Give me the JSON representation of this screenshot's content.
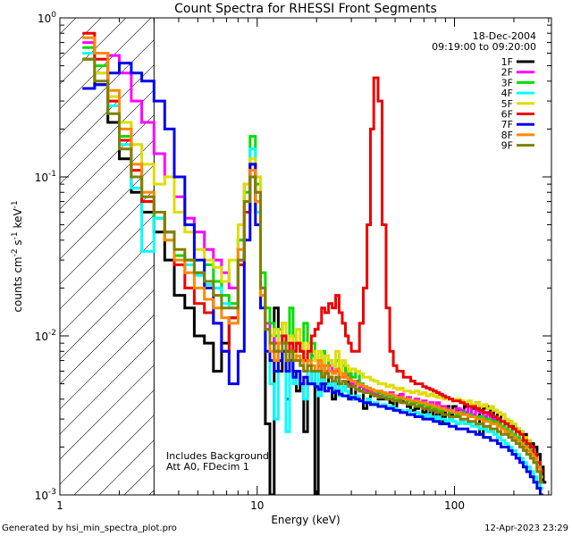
{
  "chart_data": {
    "type": "line",
    "title": "Count Spectra for RHESSI Front Segments",
    "xlabel": "Energy (keV)",
    "ylabel_main": "counts cm",
    "ylabel_sup1": "-2",
    "ylabel_mid1": " s",
    "ylabel_sup2": "-1",
    "ylabel_mid2": " keV",
    "ylabel_sup3": "-1",
    "xscale": "log",
    "yscale": "log",
    "xlim": [
      1,
      310
    ],
    "ylim": [
      0.001,
      1.0
    ],
    "x_ticks": [
      {
        "v": 1,
        "label": "1"
      },
      {
        "v": 10,
        "label": "10"
      },
      {
        "v": 100,
        "label": "100"
      }
    ],
    "y_ticks": [
      {
        "v": 1,
        "base": "10",
        "exp": "0"
      },
      {
        "v": 0.1,
        "base": "10",
        "exp": "-1"
      },
      {
        "v": 0.01,
        "base": "10",
        "exp": "-2"
      },
      {
        "v": 0.001,
        "base": "10",
        "exp": "-3"
      }
    ],
    "date": "18-Dec-2004",
    "time_range": "09:19:00 to 09:20:00",
    "notes": [
      "Includes Background",
      "Att A0, FDecim 1"
    ],
    "hatched_below_keV": 3,
    "bin_edges": [
      1.3,
      1.5,
      1.75,
      2,
      2.3,
      2.6,
      3,
      3.4,
      3.8,
      4.3,
      4.8,
      5.4,
      6,
      6.6,
      7.2,
      8,
      8.6,
      9.2,
      9.8,
      10.4,
      11,
      11.6,
      12.2,
      12.8,
      13.4,
      14,
      14.6,
      15.2,
      15.8,
      16.5,
      17.2,
      18,
      18.8,
      19.6,
      20.4,
      21.2,
      22,
      23,
      24,
      25,
      26,
      27,
      28,
      29,
      30,
      31.5,
      33,
      34.5,
      36,
      37.5,
      39,
      41,
      43,
      45,
      47,
      49,
      51,
      53,
      55,
      57.5,
      60,
      63,
      66,
      69,
      72,
      75,
      78,
      81,
      84,
      87,
      90,
      94,
      98,
      102,
      107,
      112,
      117,
      122,
      128,
      134,
      140,
      146,
      152,
      158,
      165,
      172,
      180,
      188,
      196,
      205,
      214,
      223,
      232,
      242,
      252,
      262,
      272,
      282,
      292,
      303
    ],
    "series": [
      {
        "name": "1F",
        "color": "#000000",
        "values": [
          0.55,
          0.38,
          0.22,
          0.13,
          0.08,
          0.06,
          0.045,
          0.03,
          0.018,
          0.015,
          0.01,
          0.009,
          0.006,
          0.009,
          0.013,
          0.03,
          0.06,
          0.1,
          0.06,
          0.02,
          0.0028,
          0.001,
          0.015,
          0.006,
          0.008,
          0.004,
          0.009,
          0.006,
          0.0045,
          0.005,
          0.0025,
          0.005,
          0.006,
          0.001,
          0.005,
          0.006,
          0.005,
          0.0055,
          0.004,
          0.005,
          0.006,
          0.0065,
          0.0055,
          0.005,
          0.004,
          0.005,
          0.0045,
          0.0035,
          0.004,
          0.0045,
          0.0042,
          0.004,
          0.004,
          0.004,
          0.0038,
          0.0035,
          0.0042,
          0.004,
          0.0038,
          0.0036,
          0.0034,
          0.0035,
          0.0038,
          0.0033,
          0.0036,
          0.003,
          0.0034,
          0.0031,
          0.0036,
          0.0028,
          0.0036,
          0.0032,
          0.0036,
          0.0034,
          0.0033,
          0.0036,
          0.0032,
          0.0035,
          0.0038,
          0.0024,
          0.0035,
          0.0036,
          0.0031,
          0.0034,
          0.003,
          0.0032,
          0.0028,
          0.0029,
          0.0027,
          0.0026,
          0.0025,
          0.0024,
          0.0022,
          0.0021,
          0.002,
          0.0018,
          0.0015,
          0.0012
        ]
      },
      {
        "name": "2F",
        "color": "#ff00ff",
        "values": [
          0.7,
          0.6,
          0.58,
          0.45,
          0.3,
          0.22,
          0.14,
          0.1,
          0.075,
          0.055,
          0.045,
          0.035,
          0.03,
          0.025,
          0.02,
          0.04,
          0.09,
          0.12,
          0.08,
          0.02,
          0.012,
          0.01,
          0.009,
          0.01,
          0.012,
          0.008,
          0.009,
          0.01,
          0.009,
          0.008,
          0.007,
          0.008,
          0.0075,
          0.007,
          0.0065,
          0.0065,
          0.006,
          0.0065,
          0.006,
          0.006,
          0.0055,
          0.0055,
          0.006,
          0.0055,
          0.005,
          0.0052,
          0.0048,
          0.0046,
          0.0045,
          0.0044,
          0.0043,
          0.0042,
          0.0043,
          0.0042,
          0.0044,
          0.0042,
          0.0041,
          0.0043,
          0.004,
          0.0041,
          0.0038,
          0.004,
          0.0037,
          0.0039,
          0.0036,
          0.0038,
          0.0036,
          0.0038,
          0.0035,
          0.0036,
          0.0035,
          0.0034,
          0.0033,
          0.0035,
          0.0034,
          0.0033,
          0.0036,
          0.0032,
          0.0034,
          0.0033,
          0.0031,
          0.0032,
          0.003,
          0.003,
          0.0029,
          0.0027,
          0.0026,
          0.0025,
          0.0024,
          0.0022,
          0.0021,
          0.002,
          0.0019,
          0.0018,
          0.0016,
          0.0014,
          0.0012
        ]
      },
      {
        "name": "3F",
        "color": "#00dd00",
        "values": [
          0.65,
          0.5,
          0.3,
          0.18,
          0.1,
          0.07,
          0.055,
          0.04,
          0.032,
          0.03,
          0.025,
          0.028,
          0.022,
          0.018,
          0.016,
          0.04,
          0.08,
          0.18,
          0.09,
          0.025,
          0.015,
          0.012,
          0.01,
          0.011,
          0.012,
          0.009,
          0.015,
          0.01,
          0.009,
          0.008,
          0.012,
          0.007,
          0.009,
          0.007,
          0.006,
          0.008,
          0.0065,
          0.007,
          0.0065,
          0.007,
          0.006,
          0.0065,
          0.006,
          0.0058,
          0.0055,
          0.006,
          0.005,
          0.0048,
          0.0047,
          0.0046,
          0.0045,
          0.0044,
          0.0043,
          0.0042,
          0.0042,
          0.0041,
          0.004,
          0.0041,
          0.004,
          0.0039,
          0.0038,
          0.0038,
          0.0037,
          0.0037,
          0.0036,
          0.0036,
          0.0035,
          0.0035,
          0.0034,
          0.0034,
          0.0034,
          0.0033,
          0.0033,
          0.0032,
          0.0033,
          0.0032,
          0.0032,
          0.0031,
          0.0031,
          0.0031,
          0.003,
          0.003,
          0.0029,
          0.0029,
          0.0028,
          0.0027,
          0.0026,
          0.0025,
          0.0024,
          0.0023,
          0.0022,
          0.0021,
          0.002,
          0.0019,
          0.0017,
          0.0015,
          0.0013
        ]
      },
      {
        "name": "4F",
        "color": "#00ffff",
        "values": [
          0.6,
          0.45,
          0.28,
          0.16,
          0.085,
          0.034,
          0.055,
          0.045,
          0.03,
          0.028,
          0.024,
          0.021,
          0.02,
          0.016,
          0.015,
          0.03,
          0.06,
          0.15,
          0.06,
          0.02,
          0.008,
          0.005,
          0.003,
          0.01,
          0.009,
          0.0025,
          0.008,
          0.005,
          0.006,
          0.005,
          0.004,
          0.006,
          0.005,
          0.006,
          0.0042,
          0.006,
          0.0048,
          0.005,
          0.0045,
          0.0052,
          0.0042,
          0.0048,
          0.0045,
          0.0042,
          0.004,
          0.0042,
          0.0039,
          0.0038,
          0.004,
          0.0037,
          0.0038,
          0.0036,
          0.0037,
          0.0035,
          0.0036,
          0.0035,
          0.0034,
          0.0034,
          0.0033,
          0.0034,
          0.0032,
          0.0033,
          0.0032,
          0.0031,
          0.0032,
          0.0031,
          0.003,
          0.0031,
          0.003,
          0.003,
          0.0029,
          0.003,
          0.0029,
          0.0028,
          0.0029,
          0.0028,
          0.0028,
          0.0027,
          0.0027,
          0.0026,
          0.0026,
          0.0025,
          0.0025,
          0.0024,
          0.0023,
          0.0022,
          0.0021,
          0.002,
          0.0019,
          0.0018,
          0.0017,
          0.0016,
          0.0015,
          0.0014,
          0.0013,
          0.0012,
          0.0011
        ]
      },
      {
        "name": "5F",
        "color": "#dddd00",
        "values": [
          0.55,
          0.45,
          0.32,
          0.22,
          0.16,
          0.12,
          0.09,
          0.1,
          0.06,
          0.045,
          0.035,
          0.03,
          0.027,
          0.022,
          0.03,
          0.05,
          0.09,
          0.13,
          0.1,
          0.015,
          0.011,
          0.01,
          0.011,
          0.009,
          0.012,
          0.008,
          0.01,
          0.007,
          0.011,
          0.009,
          0.007,
          0.009,
          0.008,
          0.007,
          0.008,
          0.006,
          0.0075,
          0.007,
          0.0065,
          0.008,
          0.006,
          0.007,
          0.0065,
          0.006,
          0.0062,
          0.006,
          0.0058,
          0.0055,
          0.0055,
          0.0053,
          0.0052,
          0.005,
          0.005,
          0.0048,
          0.0049,
          0.0047,
          0.0046,
          0.0047,
          0.0045,
          0.0045,
          0.0044,
          0.0045,
          0.0043,
          0.0044,
          0.0042,
          0.0043,
          0.0042,
          0.0041,
          0.0042,
          0.004,
          0.0041,
          0.004,
          0.0039,
          0.004,
          0.0039,
          0.0038,
          0.0039,
          0.0037,
          0.0038,
          0.0036,
          0.0037,
          0.0035,
          0.0036,
          0.0034,
          0.0033,
          0.0032,
          0.003,
          0.0029,
          0.0028,
          0.0026,
          0.0025,
          0.0023,
          0.0022,
          0.002,
          0.0018,
          0.0016,
          0.0014
        ]
      },
      {
        "name": "6F",
        "color": "#ee0000",
        "values": [
          0.8,
          0.55,
          0.3,
          0.17,
          0.11,
          0.07,
          0.06,
          0.045,
          0.028,
          0.02,
          0.016,
          0.014,
          0.012,
          0.008,
          0.013,
          0.028,
          0.06,
          0.12,
          0.07,
          0.018,
          0.011,
          0.009,
          0.008,
          0.009,
          0.01,
          0.008,
          0.009,
          0.008,
          0.009,
          0.008,
          0.007,
          0.008,
          0.01,
          0.011,
          0.012,
          0.015,
          0.014,
          0.016,
          0.015,
          0.018,
          0.014,
          0.012,
          0.01,
          0.009,
          0.008,
          0.008,
          0.012,
          0.02,
          0.05,
          0.2,
          0.42,
          0.3,
          0.05,
          0.015,
          0.008,
          0.0065,
          0.006,
          0.006,
          0.0055,
          0.0055,
          0.0052,
          0.005,
          0.005,
          0.0048,
          0.0047,
          0.0046,
          0.0045,
          0.0044,
          0.0043,
          0.0042,
          0.0041,
          0.004,
          0.0039,
          0.0039,
          0.0038,
          0.0037,
          0.0036,
          0.0036,
          0.0035,
          0.0034,
          0.0033,
          0.0033,
          0.0032,
          0.0031,
          0.003,
          0.0029,
          0.0028,
          0.0027,
          0.0026,
          0.0025,
          0.0024,
          0.0022,
          0.0021,
          0.002,
          0.0018,
          0.0016,
          0.0014
        ]
      },
      {
        "name": "7F",
        "color": "#0000ee",
        "values": [
          0.36,
          0.38,
          0.45,
          0.52,
          0.45,
          0.4,
          0.3,
          0.2,
          0.1,
          0.05,
          0.03,
          0.02,
          0.012,
          0.008,
          0.005,
          0.008,
          0.04,
          0.12,
          0.05,
          0.015,
          0.008,
          0.007,
          0.006,
          0.007,
          0.008,
          0.006,
          0.007,
          0.0055,
          0.006,
          0.005,
          0.0055,
          0.005,
          0.005,
          0.0048,
          0.0046,
          0.005,
          0.0045,
          0.0047,
          0.0044,
          0.0045,
          0.0043,
          0.0042,
          0.0042,
          0.004,
          0.0041,
          0.004,
          0.0039,
          0.0038,
          0.0038,
          0.0037,
          0.0037,
          0.0036,
          0.0036,
          0.0035,
          0.0035,
          0.0034,
          0.0034,
          0.0033,
          0.0033,
          0.0032,
          0.0032,
          0.0031,
          0.0031,
          0.003,
          0.003,
          0.003,
          0.0029,
          0.0029,
          0.0028,
          0.0028,
          0.0028,
          0.0027,
          0.0027,
          0.0026,
          0.0026,
          0.0026,
          0.0025,
          0.0025,
          0.0024,
          0.0024,
          0.0023,
          0.0023,
          0.0022,
          0.0022,
          0.0021,
          0.002,
          0.002,
          0.0019,
          0.0018,
          0.0017,
          0.0016,
          0.0015,
          0.0014,
          0.0013,
          0.0012,
          0.0011,
          0.001
        ]
      },
      {
        "name": "8F",
        "color": "#ff8800",
        "values": [
          0.75,
          0.6,
          0.35,
          0.2,
          0.12,
          0.08,
          0.06,
          0.04,
          0.03,
          0.025,
          0.02,
          0.017,
          0.015,
          0.013,
          0.012,
          0.035,
          0.07,
          0.11,
          0.07,
          0.018,
          0.011,
          0.008,
          0.007,
          0.009,
          0.009,
          0.007,
          0.008,
          0.007,
          0.0075,
          0.007,
          0.006,
          0.007,
          0.0065,
          0.006,
          0.007,
          0.0055,
          0.0065,
          0.006,
          0.0058,
          0.0062,
          0.0055,
          0.0058,
          0.0055,
          0.0053,
          0.0052,
          0.005,
          0.0049,
          0.0048,
          0.0047,
          0.0046,
          0.0045,
          0.0045,
          0.0044,
          0.0043,
          0.0043,
          0.0042,
          0.0041,
          0.0041,
          0.004,
          0.004,
          0.0039,
          0.0039,
          0.0038,
          0.0038,
          0.0037,
          0.0037,
          0.0036,
          0.0036,
          0.0035,
          0.0035,
          0.0034,
          0.0034,
          0.0033,
          0.0033,
          0.0032,
          0.0032,
          0.0031,
          0.0031,
          0.003,
          0.003,
          0.0029,
          0.0029,
          0.0028,
          0.0028,
          0.0027,
          0.0026,
          0.0025,
          0.0024,
          0.0023,
          0.0022,
          0.0021,
          0.002,
          0.0019,
          0.0018,
          0.0017,
          0.0015,
          0.0013
        ]
      },
      {
        "name": "9F",
        "color": "#808000",
        "values": [
          0.55,
          0.4,
          0.25,
          0.15,
          0.1,
          0.075,
          0.06,
          0.045,
          0.035,
          0.03,
          0.025,
          0.022,
          0.018,
          0.015,
          0.015,
          0.03,
          0.07,
          0.1,
          0.08,
          0.02,
          0.011,
          0.009,
          0.008,
          0.008,
          0.009,
          0.007,
          0.008,
          0.007,
          0.007,
          0.0065,
          0.006,
          0.0065,
          0.006,
          0.006,
          0.006,
          0.0055,
          0.0058,
          0.0055,
          0.0052,
          0.0055,
          0.005,
          0.0052,
          0.005,
          0.0048,
          0.0048,
          0.0046,
          0.0045,
          0.0044,
          0.0044,
          0.0043,
          0.0042,
          0.0041,
          0.0041,
          0.004,
          0.004,
          0.0039,
          0.0039,
          0.0038,
          0.0038,
          0.0037,
          0.0037,
          0.0036,
          0.0036,
          0.0035,
          0.0035,
          0.0034,
          0.0034,
          0.0033,
          0.0033,
          0.0032,
          0.0032,
          0.0031,
          0.0031,
          0.0031,
          0.003,
          0.003,
          0.0029,
          0.0029,
          0.0028,
          0.0028,
          0.0027,
          0.0027,
          0.0026,
          0.0026,
          0.0025,
          0.0024,
          0.0024,
          0.0023,
          0.0022,
          0.0021,
          0.002,
          0.0019,
          0.0018,
          0.0017,
          0.0016,
          0.0014,
          0.0012
        ]
      }
    ]
  },
  "footer": {
    "generated_by": "Generated by hsi_min_spectra_plot.pro",
    "timestamp": "12-Apr-2023 23:29"
  }
}
